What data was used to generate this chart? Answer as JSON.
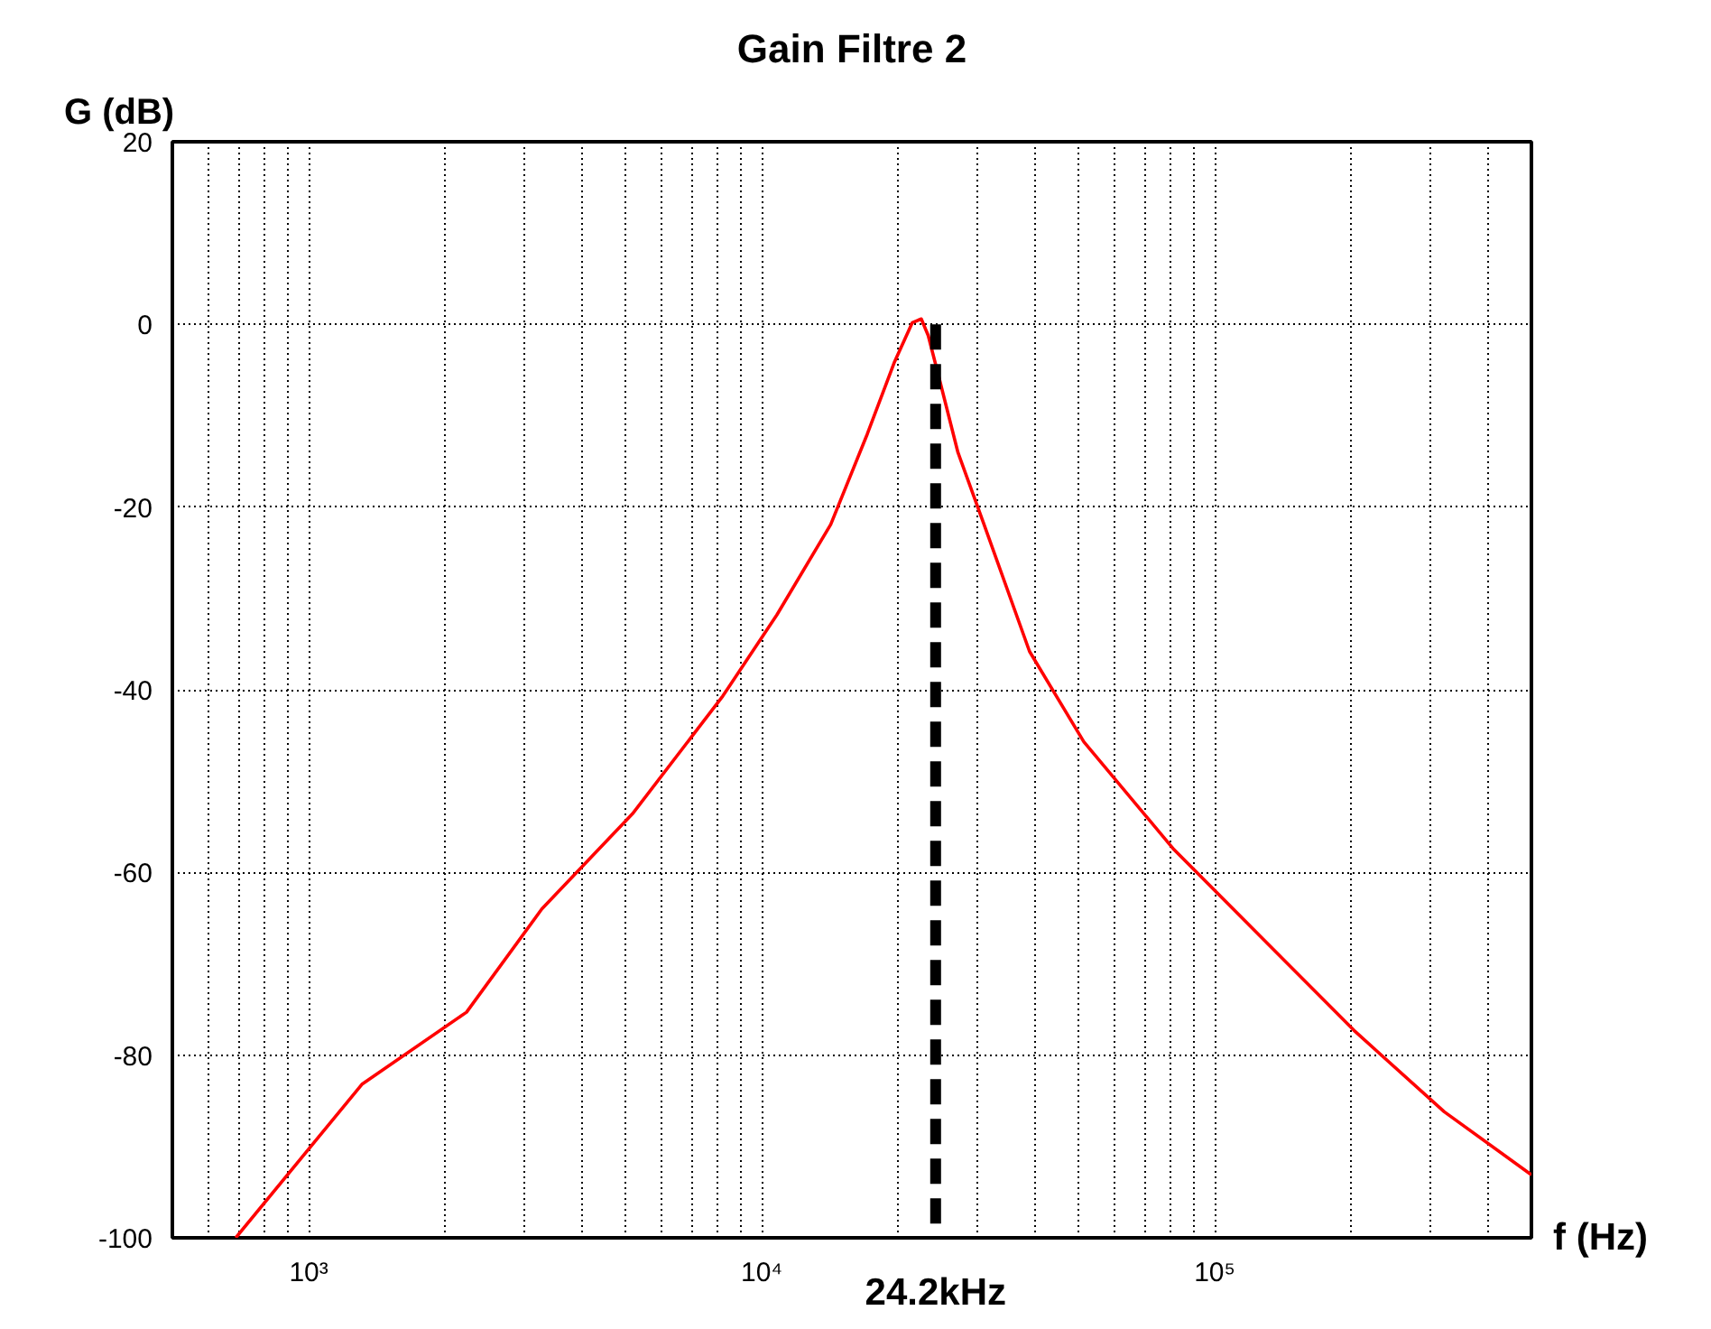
{
  "chart_data": {
    "type": "line",
    "title": "Gain Filtre 2",
    "xlabel": "f (Hz)",
    "ylabel": "G (dB)",
    "log": "x",
    "grid": true,
    "marker": "none",
    "xlim": [
      500,
      500000
    ],
    "xticks": [
      {
        "value": 1000,
        "label": "10³"
      },
      {
        "value": 10000,
        "label": "10⁴"
      },
      {
        "value": 100000,
        "label": "10⁵"
      }
    ],
    "ylim": [
      -100,
      20
    ],
    "yticks": [
      20,
      0,
      -20,
      -40,
      -60,
      -80,
      -100
    ],
    "series": [
      {
        "color": "#ff0000",
        "line_style": "solid",
        "x": [
          690,
          1310,
          2230,
          3270,
          5180,
          8200,
          10800,
          14200,
          17100,
          19600,
          21500,
          22500,
          23300,
          24700,
          27100,
          31000,
          39000,
          51400,
          81300,
          128500,
          203000,
          321000,
          500000
        ],
        "values": [
          -100,
          -83.2,
          -75.3,
          -64,
          -53.6,
          -40.7,
          -31.8,
          -21.9,
          -12,
          -4.2,
          0.2,
          0.6,
          -1.2,
          -6.1,
          -14,
          -22,
          -35.8,
          -45.7,
          -57.5,
          -67.4,
          -77.3,
          -86.2,
          -93.1
        ]
      },
      {
        "color": "#000000",
        "line_style": "dashed",
        "x": [
          24200,
          24200
        ],
        "values": [
          0,
          -100
        ]
      }
    ],
    "annotations": [
      {
        "text": "24.2kHz",
        "x": 24200,
        "y": -100
      }
    ]
  }
}
